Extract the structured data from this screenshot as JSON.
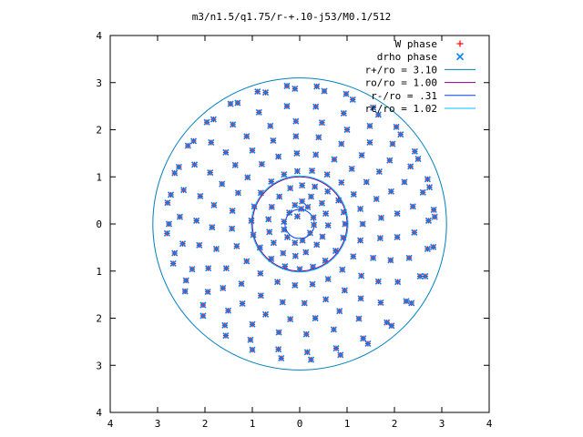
{
  "chart_data": {
    "type": "scatter",
    "title": "m3/n1.5/q1.75/r-+.10-j53/M0.1/512",
    "xlim": [
      -4,
      4
    ],
    "ylim": [
      -4,
      4
    ],
    "x_tick_values": [
      -4,
      -3,
      -2,
      -1,
      0,
      1,
      2,
      3,
      4
    ],
    "x_tick_labels": [
      "4",
      "3",
      "2",
      "1",
      "0",
      "1",
      "2",
      "3",
      "4"
    ],
    "y_tick_values": [
      -4,
      -3,
      -2,
      -1,
      0,
      1,
      2,
      3,
      4
    ],
    "y_tick_labels": [
      "4",
      "3",
      "2",
      "1",
      "0",
      "1",
      "2",
      "3",
      "4"
    ],
    "grid": false,
    "legend_position": "top-right",
    "colors": {
      "w_phase": "#ff0000",
      "drho_phase": "#0080ff",
      "r_plus": "#0080c0",
      "r_o": "#8b008b",
      "r_minus": "#0040ff",
      "r_c": "#00c0ff"
    },
    "series": [
      {
        "name": "W phase",
        "kind": "points",
        "marker": "+",
        "color": "#ff0000"
      },
      {
        "name": "drho phase",
        "kind": "points",
        "marker": "x",
        "color": "#0080ff"
      },
      {
        "name": "r+/ro = 3.10",
        "kind": "circle",
        "radius": 3.1,
        "color": "#0080c0"
      },
      {
        "name": "ro/ro = 1.00",
        "kind": "circle",
        "radius": 1.0,
        "color": "#8b008b"
      },
      {
        "name": "r-/ro = .31",
        "kind": "circle",
        "radius": 0.31,
        "color": "#0040ff"
      },
      {
        "name": "rc/ro = 1.02",
        "kind": "circle",
        "radius": 1.02,
        "color": "#00c0ff"
      }
    ],
    "phase_points": [
      [
        -0.05,
        0.16
      ],
      [
        0.03,
        0.32
      ],
      [
        0.17,
        0.36
      ],
      [
        0.29,
        0.14
      ],
      [
        0.3,
        -0.02
      ],
      [
        0.22,
        -0.19
      ],
      [
        0.06,
        -0.35
      ],
      [
        -0.1,
        -0.4
      ],
      [
        -0.26,
        -0.28
      ],
      [
        -0.33,
        -0.12
      ],
      [
        -0.33,
        0.05
      ],
      [
        -0.22,
        0.24
      ],
      [
        -0.1,
        0.4
      ],
      [
        0.05,
        0.48
      ],
      [
        0.24,
        0.58
      ],
      [
        0.47,
        0.44
      ],
      [
        0.55,
        0.22
      ],
      [
        0.6,
        -0.03
      ],
      [
        0.48,
        -0.27
      ],
      [
        0.36,
        -0.44
      ],
      [
        0.13,
        -0.6
      ],
      [
        -0.09,
        -0.68
      ],
      [
        -0.35,
        -0.62
      ],
      [
        -0.55,
        -0.4
      ],
      [
        -0.64,
        -0.17
      ],
      [
        -0.66,
        0.1
      ],
      [
        -0.59,
        0.36
      ],
      [
        -0.43,
        0.58
      ],
      [
        -0.2,
        0.76
      ],
      [
        0.05,
        0.82
      ],
      [
        0.32,
        0.79
      ],
      [
        0.59,
        0.69
      ],
      [
        0.82,
        0.5
      ],
      [
        0.93,
        0.25
      ],
      [
        0.96,
        0.0
      ],
      [
        0.92,
        -0.29
      ],
      [
        0.76,
        -0.57
      ],
      [
        0.54,
        -0.78
      ],
      [
        0.28,
        -0.91
      ],
      [
        0.0,
        -0.96
      ],
      [
        -0.31,
        -0.9
      ],
      [
        -0.6,
        -0.74
      ],
      [
        -0.84,
        -0.5
      ],
      [
        -0.98,
        -0.23
      ],
      [
        -1.02,
        0.07
      ],
      [
        -0.96,
        0.37
      ],
      [
        -0.82,
        0.66
      ],
      [
        -0.6,
        0.9
      ],
      [
        -0.33,
        1.05
      ],
      [
        -0.05,
        1.12
      ],
      [
        0.26,
        1.13
      ],
      [
        0.58,
        1.05
      ],
      [
        0.88,
        0.88
      ],
      [
        1.14,
        0.63
      ],
      [
        1.28,
        0.32
      ],
      [
        1.33,
        0.0
      ],
      [
        1.28,
        -0.35
      ],
      [
        1.13,
        -0.69
      ],
      [
        0.9,
        -0.97
      ],
      [
        0.6,
        -1.17
      ],
      [
        0.27,
        -1.28
      ],
      [
        -0.1,
        -1.3
      ],
      [
        -0.47,
        -1.23
      ],
      [
        -0.83,
        -1.05
      ],
      [
        -1.12,
        -0.79
      ],
      [
        -1.33,
        -0.47
      ],
      [
        -1.43,
        -0.1
      ],
      [
        -1.42,
        0.28
      ],
      [
        -1.3,
        0.66
      ],
      [
        -1.1,
        0.99
      ],
      [
        -0.8,
        1.27
      ],
      [
        -0.45,
        1.43
      ],
      [
        -0.06,
        1.5
      ],
      [
        0.34,
        1.47
      ],
      [
        0.73,
        1.37
      ],
      [
        1.1,
        1.17
      ],
      [
        1.41,
        0.89
      ],
      [
        1.62,
        0.53
      ],
      [
        1.72,
        0.13
      ],
      [
        1.7,
        -0.3
      ],
      [
        1.55,
        -0.72
      ],
      [
        1.3,
        -1.1
      ],
      [
        0.95,
        -1.41
      ],
      [
        0.55,
        -1.6
      ],
      [
        0.1,
        -1.68
      ],
      [
        -0.36,
        -1.66
      ],
      [
        -0.82,
        -1.52
      ],
      [
        -1.23,
        -1.27
      ],
      [
        -1.55,
        -0.94
      ],
      [
        -1.76,
        -0.53
      ],
      [
        -1.85,
        -0.07
      ],
      [
        -1.81,
        0.4
      ],
      [
        -1.64,
        0.85
      ],
      [
        -1.36,
        1.25
      ],
      [
        -1.0,
        1.56
      ],
      [
        -0.56,
        1.77
      ],
      [
        -0.08,
        1.86
      ],
      [
        0.4,
        1.84
      ],
      [
        0.88,
        1.7
      ],
      [
        1.31,
        1.46
      ],
      [
        1.68,
        1.11
      ],
      [
        1.93,
        0.69
      ],
      [
        2.06,
        0.22
      ],
      [
        2.06,
        -0.28
      ],
      [
        1.92,
        -0.77
      ],
      [
        1.66,
        -1.22
      ],
      [
        1.29,
        -1.58
      ],
      [
        0.84,
        -1.85
      ],
      [
        0.33,
        -2.0
      ],
      [
        -0.2,
        -2.02
      ],
      [
        -0.72,
        -1.92
      ],
      [
        -1.21,
        -1.69
      ],
      [
        -1.62,
        -1.36
      ],
      [
        -1.93,
        -0.94
      ],
      [
        -2.12,
        -0.45
      ],
      [
        -2.18,
        0.07
      ],
      [
        -2.1,
        0.59
      ],
      [
        -1.89,
        1.09
      ],
      [
        -1.56,
        1.52
      ],
      [
        -1.12,
        1.86
      ],
      [
        -0.62,
        2.08
      ],
      [
        -0.08,
        2.18
      ],
      [
        0.47,
        2.15
      ],
      [
        1.0,
        2.0
      ],
      [
        1.48,
        1.73
      ],
      [
        1.9,
        1.35
      ],
      [
        2.21,
        0.89
      ],
      [
        2.39,
        0.37
      ],
      [
        2.42,
        -0.18
      ],
      [
        2.31,
        -0.72
      ],
      [
        2.07,
        -1.23
      ],
      [
        1.71,
        -1.67
      ],
      [
        1.25,
        -2.01
      ],
      [
        0.72,
        -2.24
      ],
      [
        0.14,
        -2.34
      ],
      [
        -0.44,
        -2.3
      ],
      [
        -1.0,
        -2.13
      ],
      [
        -1.51,
        -1.84
      ],
      [
        -1.94,
        -1.44
      ],
      [
        -2.27,
        -0.96
      ],
      [
        -2.47,
        -0.42
      ],
      [
        -2.53,
        0.15
      ],
      [
        -2.45,
        0.72
      ],
      [
        -2.22,
        1.26
      ],
      [
        -1.87,
        1.73
      ],
      [
        -1.41,
        2.11
      ],
      [
        -0.86,
        2.37
      ],
      [
        -0.27,
        2.5
      ],
      [
        0.34,
        2.49
      ],
      [
        0.93,
        2.35
      ],
      [
        1.48,
        2.08
      ],
      [
        1.96,
        1.7
      ],
      [
        2.34,
        1.22
      ],
      [
        2.6,
        0.67
      ],
      [
        2.72,
        0.07
      ],
      [
        2.7,
        -0.53
      ],
      [
        2.54,
        -1.11
      ],
      [
        2.25,
        -1.64
      ],
      [
        1.84,
        -2.09
      ],
      [
        1.34,
        -2.43
      ],
      [
        0.77,
        -2.64
      ],
      [
        0.16,
        -2.72
      ],
      [
        -0.45,
        -2.66
      ],
      [
        -1.04,
        -2.46
      ],
      [
        -1.58,
        -2.15
      ],
      [
        -2.04,
        -1.72
      ],
      [
        -2.4,
        -1.2
      ],
      [
        -2.64,
        -0.62
      ],
      [
        -2.76,
        0.0
      ],
      [
        -2.72,
        0.62
      ],
      [
        -2.55,
        1.21
      ],
      [
        -2.24,
        1.76
      ],
      [
        -1.82,
        2.22
      ],
      [
        -1.31,
        2.57
      ],
      [
        -0.72,
        2.79
      ],
      [
        -0.1,
        2.87
      ],
      [
        0.52,
        2.82
      ],
      [
        1.12,
        2.64
      ],
      [
        1.66,
        2.32
      ],
      [
        2.13,
        1.9
      ],
      [
        2.5,
        1.38
      ],
      [
        2.74,
        0.78
      ],
      [
        2.85,
        0.15
      ],
      [
        2.82,
        -0.49
      ],
      [
        2.65,
        -1.11
      ],
      [
        2.36,
        -1.68
      ],
      [
        1.94,
        -2.16
      ],
      [
        1.44,
        -2.54
      ],
      [
        0.86,
        -2.78
      ],
      [
        0.24,
        -2.88
      ],
      [
        -0.39,
        -2.85
      ],
      [
        -1.0,
        -2.67
      ],
      [
        -1.56,
        -2.37
      ],
      [
        -2.04,
        -1.95
      ],
      [
        -2.42,
        -1.43
      ],
      [
        -2.67,
        -0.84
      ],
      [
        -2.8,
        -0.2
      ],
      [
        -2.79,
        0.45
      ],
      [
        -2.64,
        1.08
      ],
      [
        -2.36,
        1.66
      ],
      [
        -1.96,
        2.16
      ],
      [
        -1.46,
        2.55
      ],
      [
        -0.89,
        2.81
      ],
      [
        -0.27,
        2.93
      ],
      [
        0.36,
        2.92
      ],
      [
        0.98,
        2.76
      ],
      [
        1.55,
        2.47
      ],
      [
        2.04,
        2.06
      ],
      [
        2.43,
        1.54
      ],
      [
        2.7,
        0.95
      ],
      [
        2.83,
        0.3
      ]
    ]
  }
}
